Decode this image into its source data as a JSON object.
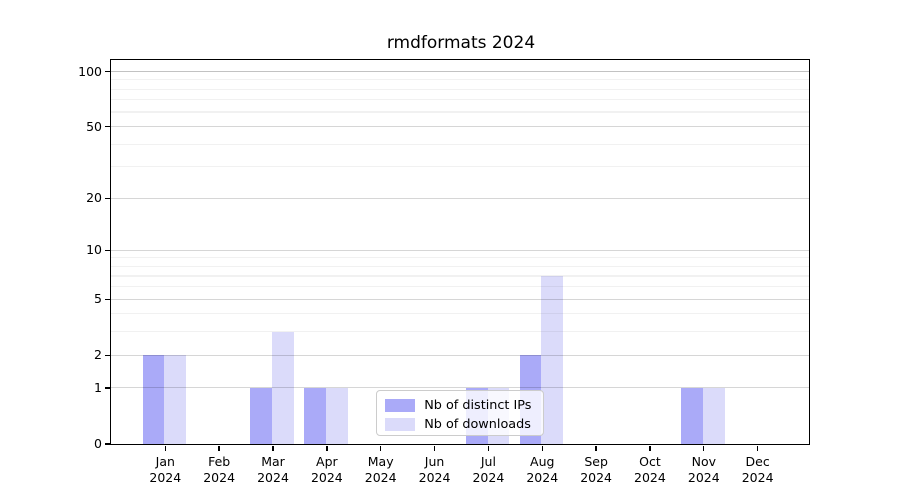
{
  "title": "rmdformats 2024",
  "chart_data": {
    "type": "bar",
    "categories": [
      {
        "month": "Jan",
        "year": "2024"
      },
      {
        "month": "Feb",
        "year": "2024"
      },
      {
        "month": "Mar",
        "year": "2024"
      },
      {
        "month": "Apr",
        "year": "2024"
      },
      {
        "month": "May",
        "year": "2024"
      },
      {
        "month": "Jun",
        "year": "2024"
      },
      {
        "month": "Jul",
        "year": "2024"
      },
      {
        "month": "Aug",
        "year": "2024"
      },
      {
        "month": "Sep",
        "year": "2024"
      },
      {
        "month": "Oct",
        "year": "2024"
      },
      {
        "month": "Nov",
        "year": "2024"
      },
      {
        "month": "Dec",
        "year": "2024"
      }
    ],
    "series": [
      {
        "name": "Nb of distinct IPs",
        "color": "#aaaaf8",
        "values": [
          2,
          0,
          1,
          1,
          0,
          0,
          1,
          2,
          0,
          0,
          1,
          0
        ]
      },
      {
        "name": "Nb of downloads",
        "color": "#dbdbfa",
        "values": [
          2,
          0,
          3,
          1,
          0,
          0,
          1,
          7,
          0,
          0,
          1,
          0
        ]
      }
    ],
    "yscale": "log1p",
    "y_major_ticks": [
      0,
      1,
      2,
      5,
      10,
      20,
      50,
      100
    ],
    "y_minor_ticks": [
      3,
      4,
      6,
      7,
      8,
      9,
      30,
      40,
      60,
      70,
      80,
      90
    ],
    "ylim": [
      0,
      115
    ],
    "grid": "horizontal",
    "legend_position": "bottom-center-inside"
  },
  "colors": {
    "grid_minor": "rgba(0,0,0,0.055)",
    "grid_major": "rgba(0,0,0,0.16)",
    "grid_top": "rgba(0,0,0,0.24)",
    "axis": "#000000",
    "background": "#ffffff"
  }
}
